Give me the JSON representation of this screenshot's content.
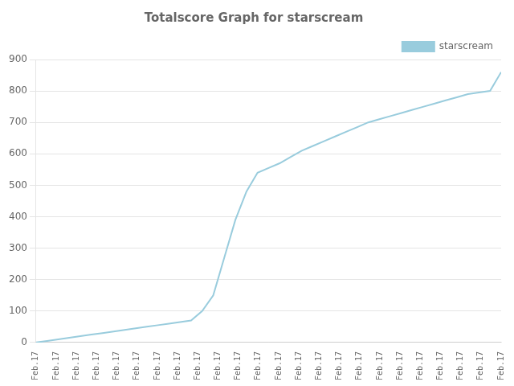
{
  "chart_data": {
    "type": "line",
    "title": "Totalscore Graph for starscream",
    "x": [
      0,
      0.547619,
      1.095238,
      1.642857,
      2.190476,
      2.738095,
      3.285714,
      3.833333,
      4.380952,
      4.928571,
      5.47619,
      6.02381,
      6.571429,
      7.119048,
      7.666667,
      8.214286,
      8.761905,
      9.309524,
      9.857143,
      10.404762,
      10.952381,
      11.5,
      12.047619,
      12.595238,
      13.142857,
      13.690476,
      14.238095,
      14.785714,
      15.333333,
      15.880952,
      16.428571,
      16.97619,
      17.52381,
      18.071429,
      18.619048,
      19.166667,
      19.714286,
      20.261905,
      20.809524,
      21.357143,
      21.904762,
      22.452381,
      23
    ],
    "series": [
      {
        "name": "starscream",
        "color": "#99ccdd",
        "marker": "none",
        "values": [
          0,
          5,
          10,
          15,
          20,
          25,
          30,
          35,
          40,
          45,
          50,
          55,
          60,
          65,
          70,
          100,
          150,
          270,
          390,
          480,
          540,
          555,
          570,
          590,
          610,
          625,
          640,
          655,
          670,
          685,
          700,
          710,
          720,
          730,
          740,
          750,
          760,
          770,
          780,
          790,
          795,
          800,
          860
        ]
      }
    ],
    "xlim": [
      0,
      23
    ],
    "xticks": [
      {
        "value": 0,
        "label": "Feb.17"
      },
      {
        "value": 1,
        "label": "Feb.17"
      },
      {
        "value": 2,
        "label": "Feb.17"
      },
      {
        "value": 3,
        "label": "Feb.17"
      },
      {
        "value": 4,
        "label": "Feb.17"
      },
      {
        "value": 5,
        "label": "Feb.17"
      },
      {
        "value": 6,
        "label": "Feb.17"
      },
      {
        "value": 7,
        "label": "Feb.17"
      },
      {
        "value": 8,
        "label": "Feb.17"
      },
      {
        "value": 9,
        "label": "Feb.17"
      },
      {
        "value": 10,
        "label": "Feb.17"
      },
      {
        "value": 11,
        "label": "Feb.17"
      },
      {
        "value": 12,
        "label": "Feb.17"
      },
      {
        "value": 13,
        "label": "Feb.17"
      },
      {
        "value": 14,
        "label": "Feb.17"
      },
      {
        "value": 15,
        "label": "Feb.17"
      },
      {
        "value": 16,
        "label": "Feb.17"
      },
      {
        "value": 17,
        "label": "Feb.17"
      },
      {
        "value": 18,
        "label": "Feb.17"
      },
      {
        "value": 19,
        "label": "Feb.17"
      },
      {
        "value": 20,
        "label": "Feb.17"
      },
      {
        "value": 21,
        "label": "Feb.17"
      },
      {
        "value": 22,
        "label": "Feb.17"
      },
      {
        "value": 23,
        "label": "Feb.17"
      }
    ],
    "ylim": [
      0,
      900
    ],
    "yticks": [
      0,
      100,
      200,
      300,
      400,
      500,
      600,
      700,
      800,
      900
    ],
    "grid": true,
    "legend": "upper right"
  }
}
